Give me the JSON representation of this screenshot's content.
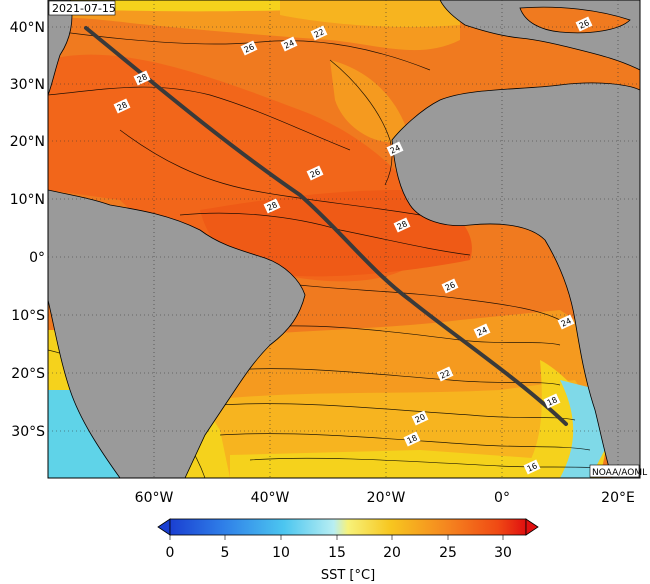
{
  "map": {
    "date": "2021-07-15",
    "credit": "NOAA/AOML",
    "lat_labels": [
      "40°N",
      "30°N",
      "20°N",
      "10°N",
      "0°",
      "10°S",
      "20°S",
      "30°S"
    ],
    "lon_labels": [
      "60°W",
      "40°W",
      "20°W",
      "0°",
      "20°E"
    ],
    "contour_labels": [
      "26",
      "24",
      "22",
      "26",
      "28",
      "28",
      "24",
      "26",
      "28",
      "28",
      "26",
      "24",
      "24",
      "22",
      "18",
      "20",
      "18",
      "16"
    ],
    "colorbar": {
      "title": "SST [°C]",
      "ticks": [
        "0",
        "5",
        "10",
        "15",
        "20",
        "25",
        "30"
      ]
    },
    "colors": {
      "land": "#9a9a9a",
      "warm": "#f07a1f",
      "hot": "#f05a14",
      "mid": "#f9a51f",
      "cool": "#f5d21c",
      "cold": "#5fd3e8",
      "track": "#3a3a3a"
    }
  }
}
